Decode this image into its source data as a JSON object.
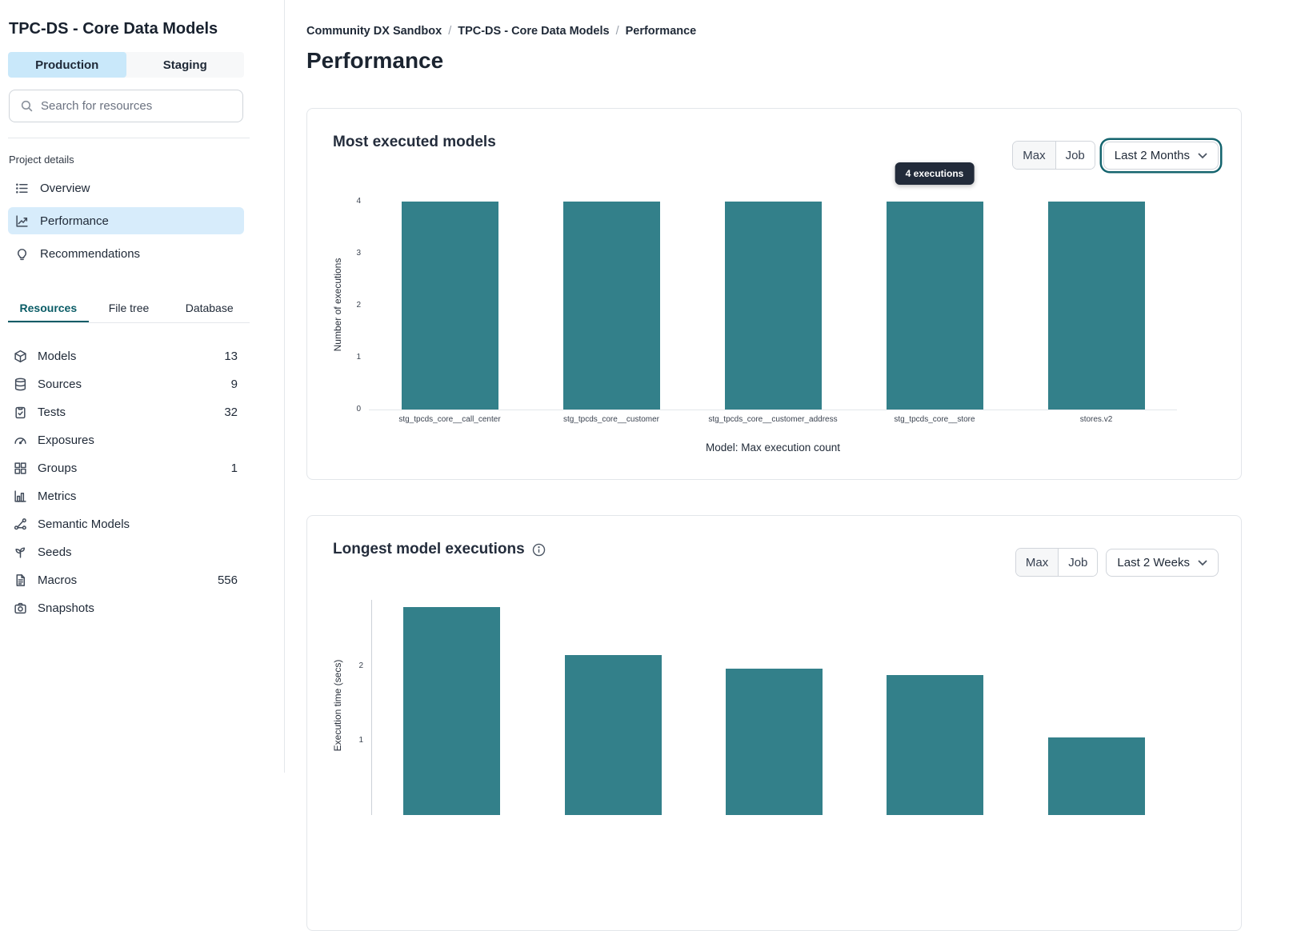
{
  "colors": {
    "bar_teal": "#33808A",
    "active_blue": "#C9E8FA",
    "active_item_blue": "#D7ECFB",
    "tab_teal": "#0A5C66",
    "focus_ring_teal": "#14646E",
    "tooltip_bg": "#222B3A"
  },
  "sidebar": {
    "title": "TPC-DS - Core Data Models",
    "env_tabs": [
      {
        "label": "Production",
        "active": true
      },
      {
        "label": "Staging",
        "active": false
      }
    ],
    "search": {
      "placeholder": "Search for resources"
    },
    "project_details": {
      "label": "Project details",
      "items": [
        {
          "label": "Overview",
          "icon": "list-icon",
          "active": false
        },
        {
          "label": "Performance",
          "icon": "trend-icon",
          "active": true
        },
        {
          "label": "Recommendations",
          "icon": "lightbulb-icon",
          "active": false
        }
      ]
    },
    "resource_tabs": [
      {
        "label": "Resources",
        "active": true
      },
      {
        "label": "File tree",
        "active": false
      },
      {
        "label": "Database",
        "active": false
      }
    ],
    "resources": [
      {
        "label": "Models",
        "count": "13",
        "icon": "cube-icon"
      },
      {
        "label": "Sources",
        "count": "9",
        "icon": "database-icon"
      },
      {
        "label": "Tests",
        "count": "32",
        "icon": "clipboard-check-icon"
      },
      {
        "label": "Exposures",
        "count": "",
        "icon": "gauge-icon"
      },
      {
        "label": "Groups",
        "count": "1",
        "icon": "grid-icon"
      },
      {
        "label": "Metrics",
        "count": "",
        "icon": "bar-chart-icon"
      },
      {
        "label": "Semantic Models",
        "count": "",
        "icon": "share-network-icon"
      },
      {
        "label": "Seeds",
        "count": "",
        "icon": "seedling-icon"
      },
      {
        "label": "Macros",
        "count": "556",
        "icon": "file-text-icon"
      },
      {
        "label": "Snapshots",
        "count": "",
        "icon": "camera-icon"
      }
    ]
  },
  "main": {
    "breadcrumb": [
      {
        "label": "Community DX Sandbox",
        "current": false
      },
      {
        "label": "TPC-DS - Core Data Models",
        "current": false
      },
      {
        "label": "Performance",
        "current": true
      }
    ],
    "page_title": "Performance"
  },
  "chart_data": [
    {
      "type": "bar",
      "title": "Most executed models",
      "categories": [
        "stg_tpcds_core__call_center",
        "stg_tpcds_core__customer",
        "stg_tpcds_core__customer_address",
        "stg_tpcds_core__store",
        "stores.v2"
      ],
      "values": [
        4,
        4,
        4,
        4,
        4
      ],
      "ylabel": "Number of executions",
      "xlabel": "Model: Max execution count",
      "yticks": [
        0,
        1,
        2,
        3,
        4
      ],
      "ylim": [
        0,
        4
      ],
      "bar_color": "#33808A",
      "grid": false,
      "tooltip": {
        "text": "4 executions",
        "target_index": 3
      },
      "controls": {
        "toggle": [
          "Max",
          "Job"
        ],
        "toggle_selected": "Max",
        "dropdown": "Last 2 Months",
        "dropdown_focused": true
      }
    },
    {
      "type": "bar",
      "title": "Longest model executions",
      "has_info_icon": true,
      "categories_visible": false,
      "values": [
        2.8,
        2.15,
        1.97,
        1.88,
        1.04
      ],
      "ylabel": "Execution time (secs)",
      "yticks": [
        1,
        2
      ],
      "bar_color": "#33808A",
      "grid": false,
      "clipped_at_viewport_bottom": true,
      "controls": {
        "toggle": [
          "Max",
          "Job"
        ],
        "toggle_selected": "Max",
        "dropdown": "Last 2 Weeks",
        "dropdown_focused": false
      }
    }
  ]
}
